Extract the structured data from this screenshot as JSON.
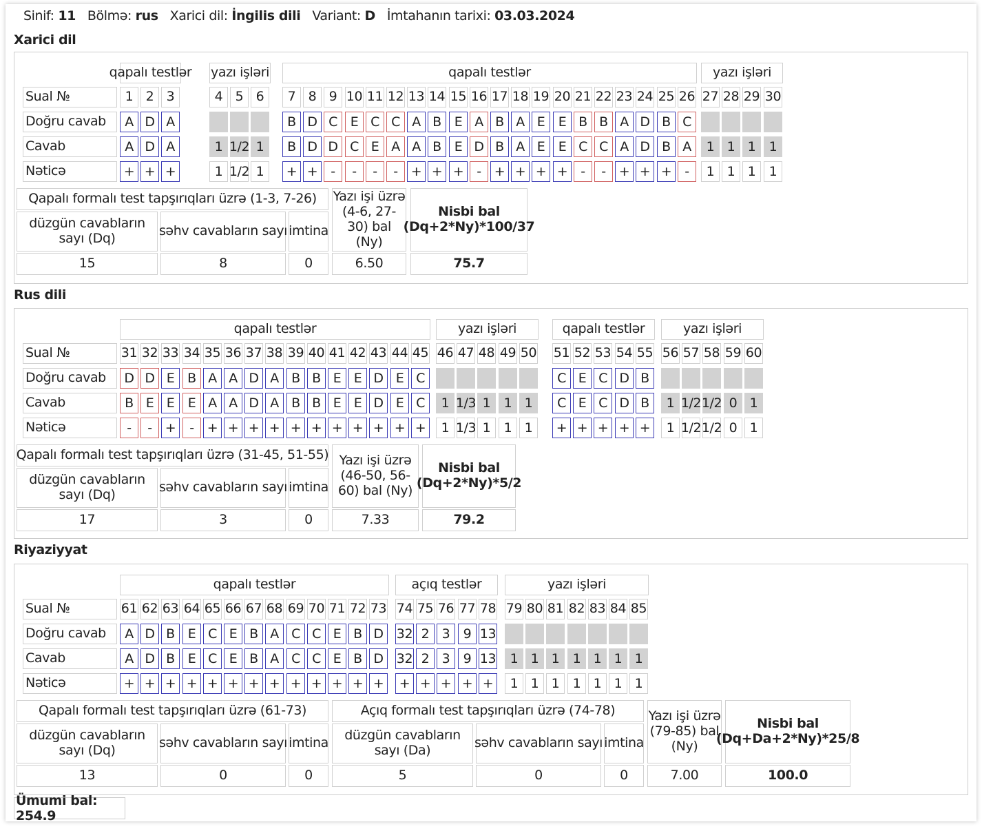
{
  "header": {
    "class_label": "Sinif:",
    "class_value": "11",
    "sector_label": "Bölmə:",
    "sector_value": "rus",
    "lang_label": "Xarici dil:",
    "lang_value": "İngilis dili",
    "variant_label": "Variant:",
    "variant_value": "D",
    "date_label": "İmtahanın tarixi:",
    "date_value": "03.03.2024"
  },
  "row_labels": {
    "num": "Sual №",
    "correct": "Doğru cavab",
    "answer": "Cavab",
    "result": "Nəticə"
  },
  "sections": [
    {
      "title": "Xarici dil",
      "groups": [
        {
          "label": "qapalı testlər",
          "kind": "closed",
          "nums": [
            "1",
            "2",
            "3"
          ],
          "correct": [
            "A",
            "D",
            "A"
          ],
          "answer": [
            "A",
            "D",
            "A"
          ],
          "result": [
            "+",
            "+",
            "+"
          ]
        },
        {
          "label": "yazı işləri",
          "kind": "written",
          "nums": [
            "4",
            "5",
            "6"
          ],
          "correct": [
            "",
            "",
            ""
          ],
          "answer": [
            "1",
            "1/2",
            "1"
          ],
          "result": [
            "1",
            "1/2",
            "1"
          ]
        },
        {
          "label": "qapalı testlər",
          "kind": "closed",
          "nums": [
            "7",
            "8",
            "9",
            "10",
            "11",
            "12",
            "13",
            "14",
            "15",
            "16",
            "17",
            "18",
            "19",
            "20",
            "21",
            "22",
            "23",
            "24",
            "25",
            "26"
          ],
          "correct": [
            "B",
            "D",
            "C",
            "E",
            "C",
            "C",
            "A",
            "B",
            "E",
            "A",
            "B",
            "A",
            "E",
            "E",
            "B",
            "B",
            "A",
            "D",
            "B",
            "C"
          ],
          "answer": [
            "B",
            "D",
            "D",
            "C",
            "E",
            "A",
            "A",
            "B",
            "E",
            "D",
            "B",
            "A",
            "E",
            "E",
            "C",
            "C",
            "A",
            "D",
            "B",
            "A"
          ],
          "result": [
            "+",
            "+",
            "-",
            "-",
            "-",
            "-",
            "+",
            "+",
            "+",
            "-",
            "+",
            "+",
            "+",
            "+",
            "-",
            "-",
            "+",
            "+",
            "+",
            "-"
          ]
        },
        {
          "label": "yazı işləri",
          "kind": "written",
          "nums": [
            "27",
            "28",
            "29",
            "30"
          ],
          "correct": [
            "",
            "",
            "",
            ""
          ],
          "answer": [
            "1",
            "1",
            "1",
            "1"
          ],
          "result": [
            "1",
            "1",
            "1",
            "1"
          ]
        }
      ],
      "summary": {
        "closed_title": "Qapalı formalı test tapşırıqları üzrə (1-3, 7-26)",
        "correct_label": "düzgün cavabların sayı (Dq)",
        "wrong_label": "səhv cavabların sayı",
        "refuse_label": "imtina",
        "correct": "15",
        "wrong": "8",
        "refuse": "0",
        "written_label": "Yazı işi üzrə (4-6, 27-30) bal (Ny)",
        "written": "6.50",
        "score_label": "Nisbi bal (Dq+2*Ny)*100/37",
        "score": "75.7"
      }
    },
    {
      "title": "Rus dili",
      "groups": [
        {
          "label": "qapalı testlər",
          "kind": "closed",
          "nums": [
            "31",
            "32",
            "33",
            "34",
            "35",
            "36",
            "37",
            "38",
            "39",
            "40",
            "41",
            "42",
            "43",
            "44",
            "45"
          ],
          "correct": [
            "D",
            "D",
            "E",
            "B",
            "A",
            "A",
            "D",
            "A",
            "B",
            "B",
            "E",
            "E",
            "D",
            "E",
            "C"
          ],
          "answer": [
            "B",
            "E",
            "E",
            "E",
            "A",
            "A",
            "D",
            "A",
            "B",
            "B",
            "E",
            "E",
            "D",
            "E",
            "C"
          ],
          "result": [
            "-",
            "-",
            "+",
            "-",
            "+",
            "+",
            "+",
            "+",
            "+",
            "+",
            "+",
            "+",
            "+",
            "+",
            "+"
          ]
        },
        {
          "label": "yazı işləri",
          "kind": "written",
          "nums": [
            "46",
            "47",
            "48",
            "49",
            "50"
          ],
          "correct": [
            "",
            "",
            "",
            "",
            ""
          ],
          "answer": [
            "1",
            "1/3",
            "1",
            "1",
            "1"
          ],
          "result": [
            "1",
            "1/3",
            "1",
            "1",
            "1"
          ]
        },
        {
          "label": "qapalı testlər",
          "kind": "closed",
          "nums": [
            "51",
            "52",
            "53",
            "54",
            "55"
          ],
          "correct": [
            "C",
            "E",
            "C",
            "D",
            "B"
          ],
          "answer": [
            "C",
            "E",
            "C",
            "D",
            "B"
          ],
          "result": [
            "+",
            "+",
            "+",
            "+",
            "+"
          ]
        },
        {
          "label": "yazı işləri",
          "kind": "written",
          "nums": [
            "56",
            "57",
            "58",
            "59",
            "60"
          ],
          "correct": [
            "",
            "",
            "",
            "",
            ""
          ],
          "answer": [
            "1",
            "1/2",
            "1/2",
            "0",
            "1"
          ],
          "result": [
            "1",
            "1/2",
            "1/2",
            "0",
            "1"
          ]
        }
      ],
      "summary": {
        "closed_title": "Qapalı formalı test tapşırıqları üzrə (31-45, 51-55)",
        "correct_label": "düzgün cavabların sayı (Dq)",
        "wrong_label": "səhv cavabların sayı",
        "refuse_label": "imtina",
        "correct": "17",
        "wrong": "3",
        "refuse": "0",
        "written_label": "Yazı işi üzrə (46-50, 56-60) bal (Ny)",
        "written": "7.33",
        "score_label": "Nisbi bal (Dq+2*Ny)*5/2",
        "score": "79.2"
      }
    },
    {
      "title": "Riyaziyyat",
      "groups": [
        {
          "label": "qapalı testlər",
          "kind": "closed",
          "nums": [
            "61",
            "62",
            "63",
            "64",
            "65",
            "66",
            "67",
            "68",
            "69",
            "70",
            "71",
            "72",
            "73"
          ],
          "correct": [
            "A",
            "D",
            "B",
            "E",
            "C",
            "E",
            "B",
            "A",
            "C",
            "C",
            "E",
            "B",
            "D"
          ],
          "answer": [
            "A",
            "D",
            "B",
            "E",
            "C",
            "E",
            "B",
            "A",
            "C",
            "C",
            "E",
            "B",
            "D"
          ],
          "result": [
            "+",
            "+",
            "+",
            "+",
            "+",
            "+",
            "+",
            "+",
            "+",
            "+",
            "+",
            "+",
            "+"
          ]
        },
        {
          "label": "açıq testlər",
          "kind": "closed",
          "nums": [
            "74",
            "75",
            "76",
            "77",
            "78"
          ],
          "correct": [
            "32",
            "2",
            "3",
            "9",
            "13"
          ],
          "answer": [
            "32",
            "2",
            "3",
            "9",
            "13"
          ],
          "result": [
            "+",
            "+",
            "+",
            "+",
            "+"
          ]
        },
        {
          "label": "yazı işləri",
          "kind": "written",
          "nums": [
            "79",
            "80",
            "81",
            "82",
            "83",
            "84",
            "85"
          ],
          "correct": [
            "",
            "",
            "",
            "",
            "",
            "",
            ""
          ],
          "answer": [
            "1",
            "1",
            "1",
            "1",
            "1",
            "1",
            "1"
          ],
          "result": [
            "1",
            "1",
            "1",
            "1",
            "1",
            "1",
            "1"
          ]
        }
      ],
      "summary": {
        "closed_title": "Qapalı formalı test tapşırıqları üzrə (61-73)",
        "correct_label": "düzgün cavabların sayı (Dq)",
        "wrong_label": "səhv cavabların sayı",
        "refuse_label": "imtina",
        "correct": "13",
        "wrong": "0",
        "refuse": "0",
        "open_title": "Açıq formalı test tapşırıqları üzrə (74-78)",
        "open_correct_label": "düzgün cavabların sayı (Da)",
        "open_wrong_label": "səhv cavabların sayı",
        "open_refuse_label": "imtina",
        "open_correct": "5",
        "open_wrong": "0",
        "open_refuse": "0",
        "written_label": "Yazı işi üzrə (79-85) bal (Ny)",
        "written": "7.00",
        "score_label": "Nisbi bal (Dq+Da+2*Ny)*25/8",
        "score": "100.0"
      }
    }
  ],
  "total_label": "Ümumi bal: 254.9",
  "colors": {
    "match_border": "#3b3bb5",
    "mismatch_border": "#d06060",
    "written_fill": "#d2d2d2"
  }
}
